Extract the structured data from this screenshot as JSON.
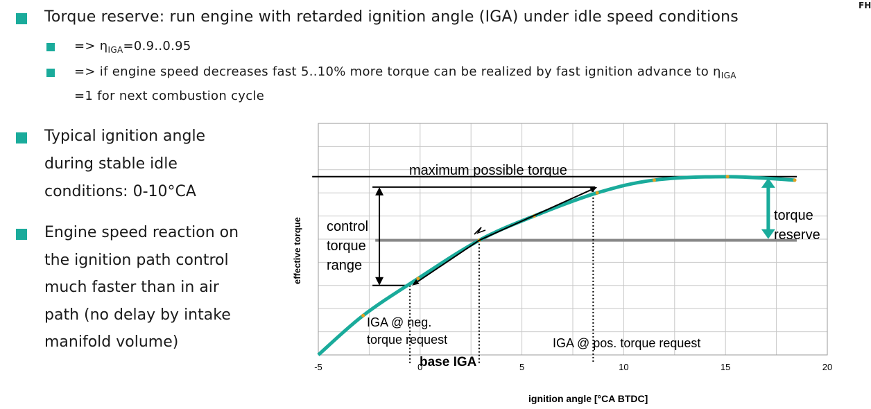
{
  "colors": {
    "bullet": "#1aab9b",
    "curve": "#1aab9b",
    "marker": "#e0a020",
    "grid": "#c8c8c8",
    "base_line": "#888888"
  },
  "corner_logo": "FH",
  "bullets": [
    {
      "text": "Torque reserve: run engine with retarded ignition angle (IGA) under idle speed conditions",
      "sub": [
        {
          "pre": "=> η",
          "subscript": "IGA",
          "post": "=0.9..0.95",
          "line2": ""
        },
        {
          "pre": "=> if engine speed decreases fast 5..10% more torque can be realized by fast ignition advance to η",
          "subscript": "IGA",
          "post": "",
          "line2": "=1 for next combustion cycle"
        }
      ]
    }
  ],
  "left_bullets": [
    {
      "lines": [
        "Typical ignition angle",
        "during stable idle",
        "conditions: 0-10°CA"
      ]
    },
    {
      "lines": [
        "Engine speed reaction on",
        "the ignition path control",
        "much faster than in air",
        "path (no delay by intake",
        "manifold volume)"
      ]
    }
  ],
  "chart_data": {
    "type": "line",
    "xlabel": "ignition angle [°CA BTDC]",
    "ylabel": "effective torque",
    "xlim": [
      -5,
      20
    ],
    "ylim": [
      0,
      10
    ],
    "grid": true,
    "x_ticks": [
      -5,
      0,
      5,
      10,
      15,
      20
    ],
    "x_tick_labels": [
      "-5",
      "0",
      "5",
      "10",
      "15",
      "20"
    ],
    "series": [
      {
        "name": "",
        "x": [
          -5,
          -2.8,
          -0.1,
          2.9,
          5.6,
          8.7,
          11.5,
          15.1,
          18.4
        ],
        "y": [
          0.0,
          1.7,
          3.3,
          4.95,
          6.0,
          7.0,
          7.55,
          7.7,
          7.55
        ]
      }
    ],
    "reference_lines": {
      "max_torque": {
        "y": 7.7,
        "x_start": -5.3,
        "x_end": 18.5
      },
      "base_torque": {
        "y": 4.95,
        "x_start": -2.2,
        "x_end": 18.5
      }
    },
    "control_range": {
      "x": -2.0,
      "y_low": 3.0,
      "y_high": 7.25
    },
    "dotted_verticals": [
      -0.5,
      2.9,
      8.5
    ],
    "arrows": [
      {
        "from": [
          2.9,
          4.95
        ],
        "to": [
          -0.4,
          3.0
        ]
      },
      {
        "from": [
          2.9,
          4.95
        ],
        "to": [
          8.7,
          7.25
        ]
      }
    ],
    "reserve_arrow": {
      "x": 17.1,
      "y_top": 7.7,
      "y_bottom": 4.95
    },
    "annotations": {
      "max_torque": "maximum possible torque",
      "control_range": [
        "control",
        "torque",
        "range"
      ],
      "torque_reserve": [
        "torque",
        "reserve"
      ],
      "neg_request": [
        "IGA @ neg.",
        "torque request"
      ],
      "pos_request": "IGA @ pos. torque request",
      "base_iga": "base IGA"
    }
  }
}
